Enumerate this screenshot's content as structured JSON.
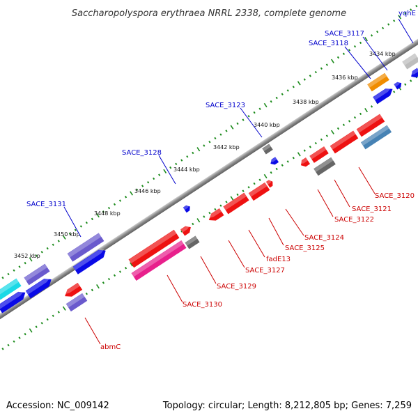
{
  "title": "Saccharopolyspora erythraea NRRL 2338, complete genome",
  "footer": {
    "accession": "Accession: NC_009142",
    "summary": "Topology: circular; Length: 8,212,805 bp; Genes: 7,259"
  },
  "colors": {
    "backbone": "#7b7b7b",
    "tick_green": "#1a8a1a",
    "label_blue": "#0000cc",
    "label_red": "#cc0000",
    "red": "#ee1111",
    "blue": "#0a0ae6",
    "slate": "#6a5acd",
    "pink": "#e8208c",
    "gray": "#666666",
    "orange": "#f08c00",
    "steel": "#4682b4",
    "cyan": "#19d9e6",
    "lightgray": "#bdbdbd"
  },
  "kbp_labels": [
    "3434 kbp",
    "3436 kbp",
    "3438 kbp",
    "3440 kbp",
    "3442 kbp",
    "3444 kbp",
    "3446 kbp",
    "3448 kbp",
    "3450 kbp",
    "3452 kbp"
  ],
  "gene_labels_outer": [
    "yqhE",
    "SACE_3117",
    "SACE_3118",
    "SACE_3123",
    "SACE_3128",
    "SACE_3131"
  ],
  "gene_labels_inner": [
    "SACE_3120",
    "SACE_3121",
    "SACE_3122",
    "SACE_3124",
    "SACE_3125",
    "fadE13",
    "SACE_3127",
    "SACE_3129",
    "SACE_3130",
    "abmC"
  ]
}
